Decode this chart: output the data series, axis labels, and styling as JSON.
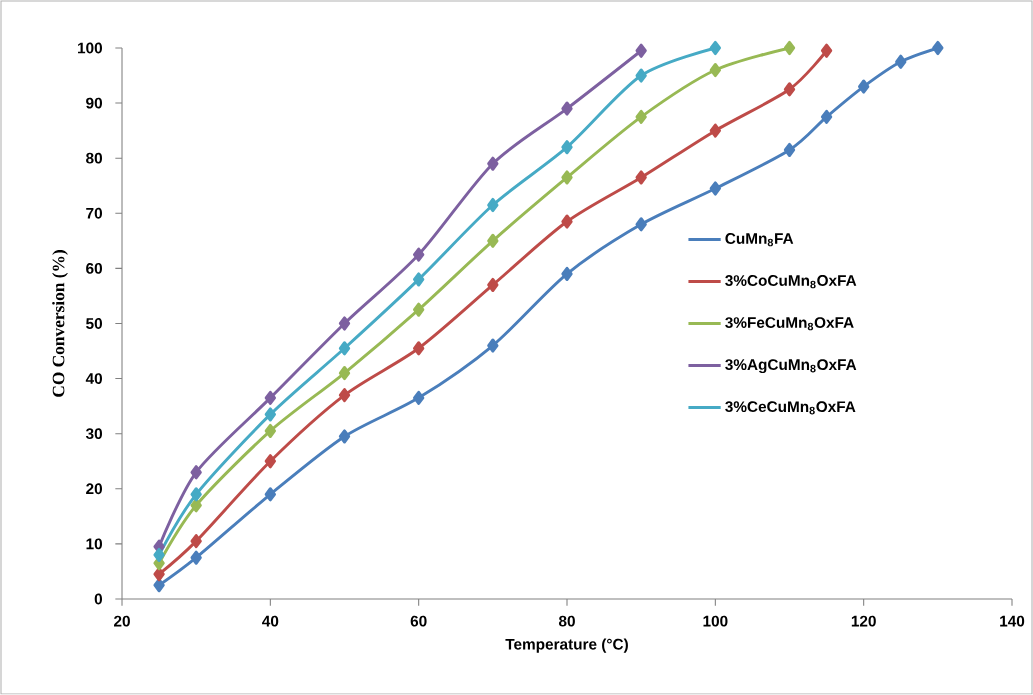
{
  "chart_data": {
    "type": "line",
    "xlabel": "Temperature (°C)",
    "ylabel": "CO Conversion (%)",
    "xlim": [
      20,
      140
    ],
    "xticks": [
      20,
      40,
      60,
      80,
      100,
      120,
      140
    ],
    "ylim": [
      0,
      100
    ],
    "yticks": [
      0,
      10,
      20,
      30,
      40,
      50,
      60,
      70,
      80,
      90,
      100
    ],
    "grid": false,
    "legend": "right",
    "marker": "diamond",
    "line_style": "solid",
    "series": [
      {
        "name": "CuMn$_{8}$FA",
        "color": "#4a7ebb",
        "x": [
          25,
          30,
          40,
          50,
          60,
          70,
          80,
          90,
          100,
          110,
          115,
          120,
          125,
          130
        ],
        "values": [
          2.5,
          7.5,
          19,
          29.5,
          36.5,
          46,
          59,
          68,
          74.5,
          81.5,
          87.5,
          93,
          97.5,
          100
        ]
      },
      {
        "name": "3%CoCuMn$_{8}$OxFA",
        "color": "#be4b48",
        "x": [
          25,
          30,
          40,
          50,
          60,
          70,
          80,
          90,
          100,
          110,
          115
        ],
        "values": [
          4.5,
          10.5,
          25,
          37,
          45.5,
          57,
          68.5,
          76.5,
          85,
          92.5,
          99.5
        ]
      },
      {
        "name": "3%FeCuMn$_{8}$OxFA",
        "color": "#98b954",
        "x": [
          25,
          30,
          40,
          50,
          60,
          70,
          80,
          90,
          100,
          110
        ],
        "values": [
          6.5,
          17,
          30.5,
          41,
          52.5,
          65,
          76.5,
          87.5,
          96,
          100
        ]
      },
      {
        "name": "3%AgCuMn$_{8}$OxFA",
        "color": "#7d60a0",
        "x": [
          25,
          30,
          40,
          50,
          60,
          70,
          80,
          90
        ],
        "values": [
          9.5,
          23,
          36.5,
          50,
          62.5,
          79,
          89,
          99.5
        ]
      },
      {
        "name": "3%CeCuMn$_{8}$OxFA",
        "color": "#46aac5",
        "x": [
          25,
          30,
          40,
          50,
          60,
          70,
          80,
          90,
          100
        ],
        "values": [
          8,
          19,
          33.5,
          45.5,
          58,
          71.5,
          82,
          95,
          100
        ]
      }
    ]
  }
}
